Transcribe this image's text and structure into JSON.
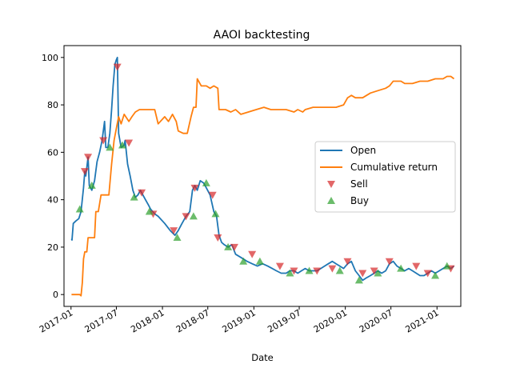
{
  "chart_data": {
    "type": "line",
    "title": "AAOI backtesting",
    "xlabel": "Date",
    "ylabel": "",
    "x_ticks": [
      "2017-01",
      "2017-07",
      "2018-01",
      "2018-07",
      "2019-01",
      "2019-07",
      "2020-01",
      "2020-07",
      "2021-01"
    ],
    "y_ticks": [
      0,
      20,
      40,
      60,
      80,
      100
    ],
    "xlim": [
      "2016-12-04",
      "2021-04-06"
    ],
    "ylim": [
      -5,
      105
    ],
    "legend_position": "center-right",
    "grid": false,
    "colors": {
      "open": "#1f77b4",
      "cumulative": "#ff7f0e",
      "sell": "#d62728",
      "buy": "#2ca02c"
    },
    "series": [
      {
        "name": "Open",
        "kind": "line",
        "points": [
          [
            "2017-01-03",
            23.5
          ],
          [
            "2017-01-05",
            23
          ],
          [
            "2017-01-10",
            30
          ],
          [
            "2017-01-20",
            31
          ],
          [
            "2017-02-01",
            32
          ],
          [
            "2017-02-10",
            35
          ],
          [
            "2017-02-20",
            45
          ],
          [
            "2017-02-25",
            52
          ],
          [
            "2017-03-01",
            50
          ],
          [
            "2017-03-10",
            58
          ],
          [
            "2017-03-15",
            46
          ],
          [
            "2017-03-25",
            44
          ],
          [
            "2017-04-05",
            48
          ],
          [
            "2017-04-15",
            56
          ],
          [
            "2017-04-25",
            60
          ],
          [
            "2017-05-05",
            65
          ],
          [
            "2017-05-15",
            73
          ],
          [
            "2017-05-20",
            62
          ],
          [
            "2017-05-28",
            62
          ],
          [
            "2017-06-05",
            68
          ],
          [
            "2017-06-12",
            78
          ],
          [
            "2017-06-18",
            88
          ],
          [
            "2017-06-25",
            97
          ],
          [
            "2017-07-01",
            99
          ],
          [
            "2017-07-05",
            100
          ],
          [
            "2017-07-10",
            68
          ],
          [
            "2017-07-20",
            62
          ],
          [
            "2017-08-01",
            63
          ],
          [
            "2017-08-05",
            65
          ],
          [
            "2017-08-15",
            55
          ],
          [
            "2017-08-25",
            50
          ],
          [
            "2017-09-05",
            44
          ],
          [
            "2017-09-15",
            41
          ],
          [
            "2017-09-25",
            42
          ],
          [
            "2017-10-05",
            44
          ],
          [
            "2017-10-15",
            42
          ],
          [
            "2017-10-25",
            40
          ],
          [
            "2017-11-05",
            38
          ],
          [
            "2017-11-15",
            36
          ],
          [
            "2017-12-01",
            34
          ],
          [
            "2017-12-15",
            33
          ],
          [
            "2018-01-10",
            30
          ],
          [
            "2018-02-01",
            27
          ],
          [
            "2018-02-20",
            25
          ],
          [
            "2018-03-05",
            27
          ],
          [
            "2018-03-20",
            30
          ],
          [
            "2018-04-05",
            33
          ],
          [
            "2018-04-20",
            35
          ],
          [
            "2018-05-01",
            44
          ],
          [
            "2018-05-10",
            46
          ],
          [
            "2018-05-20",
            44
          ],
          [
            "2018-06-01",
            48
          ],
          [
            "2018-06-15",
            47
          ],
          [
            "2018-06-25",
            45
          ],
          [
            "2018-07-10",
            42
          ],
          [
            "2018-07-25",
            35
          ],
          [
            "2018-08-05",
            33
          ],
          [
            "2018-08-15",
            25
          ],
          [
            "2018-08-25",
            22
          ],
          [
            "2018-09-05",
            21
          ],
          [
            "2018-09-20",
            20
          ],
          [
            "2018-10-05",
            21
          ],
          [
            "2018-10-20",
            17
          ],
          [
            "2018-11-05",
            16
          ],
          [
            "2018-11-20",
            15
          ],
          [
            "2018-12-05",
            14
          ],
          [
            "2018-12-25",
            13
          ],
          [
            "2019-01-15",
            12
          ],
          [
            "2019-02-05",
            13
          ],
          [
            "2019-02-25",
            12
          ],
          [
            "2019-03-15",
            11
          ],
          [
            "2019-04-01",
            10
          ],
          [
            "2019-04-20",
            9
          ],
          [
            "2019-05-10",
            9
          ],
          [
            "2019-05-25",
            10
          ],
          [
            "2019-06-10",
            10
          ],
          [
            "2019-06-25",
            9
          ],
          [
            "2019-07-10",
            10
          ],
          [
            "2019-07-25",
            11
          ],
          [
            "2019-08-10",
            10
          ],
          [
            "2019-08-25",
            10
          ],
          [
            "2019-09-10",
            10
          ],
          [
            "2019-09-25",
            11
          ],
          [
            "2019-10-10",
            12
          ],
          [
            "2019-10-25",
            13
          ],
          [
            "2019-11-10",
            14
          ],
          [
            "2019-11-25",
            13
          ],
          [
            "2019-12-10",
            12
          ],
          [
            "2019-12-25",
            11
          ],
          [
            "2020-01-10",
            13
          ],
          [
            "2020-01-25",
            14
          ],
          [
            "2020-02-10",
            10
          ],
          [
            "2020-02-25",
            8
          ],
          [
            "2020-03-10",
            6
          ],
          [
            "2020-03-25",
            7
          ],
          [
            "2020-04-10",
            8
          ],
          [
            "2020-04-25",
            9
          ],
          [
            "2020-05-10",
            10
          ],
          [
            "2020-05-25",
            9
          ],
          [
            "2020-06-10",
            10
          ],
          [
            "2020-06-25",
            13
          ],
          [
            "2020-07-10",
            14
          ],
          [
            "2020-07-25",
            12
          ],
          [
            "2020-08-10",
            11
          ],
          [
            "2020-08-25",
            10
          ],
          [
            "2020-09-10",
            11
          ],
          [
            "2020-09-25",
            10
          ],
          [
            "2020-10-10",
            9
          ],
          [
            "2020-10-25",
            8
          ],
          [
            "2020-11-10",
            8
          ],
          [
            "2020-11-25",
            9
          ],
          [
            "2020-12-10",
            10
          ],
          [
            "2020-12-25",
            9
          ],
          [
            "2021-01-10",
            10
          ],
          [
            "2021-01-25",
            11
          ],
          [
            "2021-02-10",
            12
          ],
          [
            "2021-02-25",
            11
          ],
          [
            "2021-03-10",
            12
          ]
        ]
      },
      {
        "name": "Cumulative return",
        "kind": "line",
        "points": [
          [
            "2017-01-03",
            0
          ],
          [
            "2017-01-25",
            0
          ],
          [
            "2017-02-05",
            0
          ],
          [
            "2017-02-10",
            -0.5
          ],
          [
            "2017-02-15",
            5
          ],
          [
            "2017-02-20",
            15
          ],
          [
            "2017-02-25",
            18
          ],
          [
            "2017-03-05",
            18
          ],
          [
            "2017-03-10",
            24
          ],
          [
            "2017-03-25",
            24
          ],
          [
            "2017-04-05",
            24
          ],
          [
            "2017-04-10",
            35
          ],
          [
            "2017-04-20",
            35
          ],
          [
            "2017-05-01",
            42
          ],
          [
            "2017-05-20",
            42
          ],
          [
            "2017-06-01",
            42
          ],
          [
            "2017-06-12",
            55
          ],
          [
            "2017-06-22",
            65
          ],
          [
            "2017-07-01",
            70
          ],
          [
            "2017-07-10",
            75
          ],
          [
            "2017-07-20",
            72
          ],
          [
            "2017-08-01",
            76
          ],
          [
            "2017-08-20",
            73
          ],
          [
            "2017-09-01",
            75
          ],
          [
            "2017-09-15",
            77
          ],
          [
            "2017-10-01",
            78
          ],
          [
            "2017-11-01",
            78
          ],
          [
            "2017-12-01",
            78
          ],
          [
            "2017-12-15",
            72
          ],
          [
            "2018-01-10",
            75
          ],
          [
            "2018-01-25",
            73
          ],
          [
            "2018-02-10",
            76
          ],
          [
            "2018-02-25",
            73
          ],
          [
            "2018-03-05",
            69
          ],
          [
            "2018-03-25",
            68
          ],
          [
            "2018-04-10",
            68
          ],
          [
            "2018-04-25",
            75
          ],
          [
            "2018-05-05",
            79
          ],
          [
            "2018-05-15",
            79
          ],
          [
            "2018-05-20",
            91
          ],
          [
            "2018-06-05",
            88
          ],
          [
            "2018-06-25",
            88
          ],
          [
            "2018-07-10",
            87
          ],
          [
            "2018-07-25",
            88
          ],
          [
            "2018-08-10",
            87
          ],
          [
            "2018-08-15",
            78
          ],
          [
            "2018-09-10",
            78
          ],
          [
            "2018-10-01",
            77
          ],
          [
            "2018-10-20",
            78
          ],
          [
            "2018-11-10",
            76
          ],
          [
            "2018-12-10",
            77
          ],
          [
            "2019-01-10",
            78
          ],
          [
            "2019-02-10",
            79
          ],
          [
            "2019-03-10",
            78
          ],
          [
            "2019-04-10",
            78
          ],
          [
            "2019-05-10",
            78
          ],
          [
            "2019-06-10",
            77
          ],
          [
            "2019-06-25",
            78
          ],
          [
            "2019-07-15",
            77
          ],
          [
            "2019-07-25",
            78
          ],
          [
            "2019-08-25",
            79
          ],
          [
            "2019-09-25",
            79
          ],
          [
            "2019-10-25",
            79
          ],
          [
            "2019-11-25",
            79
          ],
          [
            "2019-12-25",
            80
          ],
          [
            "2020-01-10",
            83
          ],
          [
            "2020-01-25",
            84
          ],
          [
            "2020-02-10",
            83
          ],
          [
            "2020-03-10",
            83
          ],
          [
            "2020-04-10",
            85
          ],
          [
            "2020-05-10",
            86
          ],
          [
            "2020-06-10",
            87
          ],
          [
            "2020-06-25",
            88
          ],
          [
            "2020-07-10",
            90
          ],
          [
            "2020-08-10",
            90
          ],
          [
            "2020-08-25",
            89
          ],
          [
            "2020-09-25",
            89
          ],
          [
            "2020-10-25",
            90
          ],
          [
            "2020-11-25",
            90
          ],
          [
            "2020-12-25",
            91
          ],
          [
            "2021-01-10",
            91
          ],
          [
            "2021-01-25",
            91
          ],
          [
            "2021-02-10",
            92
          ],
          [
            "2021-02-25",
            92
          ],
          [
            "2021-03-10",
            91
          ]
        ]
      },
      {
        "name": "Sell",
        "kind": "marker",
        "marker": "triangle-down",
        "points": [
          [
            "2017-02-25",
            52
          ],
          [
            "2017-03-10",
            58
          ],
          [
            "2017-05-10",
            65
          ],
          [
            "2017-07-05",
            96
          ],
          [
            "2017-08-20",
            64
          ],
          [
            "2017-10-10",
            43
          ],
          [
            "2017-11-25",
            34
          ],
          [
            "2018-02-15",
            27
          ],
          [
            "2018-04-05",
            33
          ],
          [
            "2018-05-10",
            45
          ],
          [
            "2018-07-20",
            42
          ],
          [
            "2018-08-10",
            24
          ],
          [
            "2018-10-15",
            20
          ],
          [
            "2018-12-25",
            17
          ],
          [
            "2019-04-15",
            12
          ],
          [
            "2019-06-10",
            10
          ],
          [
            "2019-09-10",
            10
          ],
          [
            "2019-11-10",
            11
          ],
          [
            "2020-01-10",
            14
          ],
          [
            "2020-03-10",
            9
          ],
          [
            "2020-04-25",
            10
          ],
          [
            "2020-06-25",
            14
          ],
          [
            "2020-10-10",
            12
          ],
          [
            "2020-11-25",
            9
          ],
          [
            "2021-02-25",
            11
          ]
        ]
      },
      {
        "name": "Buy",
        "kind": "marker",
        "marker": "triangle-up",
        "points": [
          [
            "2017-02-05",
            36
          ],
          [
            "2017-03-25",
            46
          ],
          [
            "2017-06-05",
            62
          ],
          [
            "2017-07-25",
            63
          ],
          [
            "2017-09-10",
            41
          ],
          [
            "2017-11-10",
            35
          ],
          [
            "2018-03-01",
            24
          ],
          [
            "2018-05-05",
            33
          ],
          [
            "2018-06-25",
            47
          ],
          [
            "2018-08-01",
            34
          ],
          [
            "2018-09-20",
            20
          ],
          [
            "2018-11-20",
            14
          ],
          [
            "2019-01-25",
            14
          ],
          [
            "2019-05-25",
            9
          ],
          [
            "2019-08-10",
            10
          ],
          [
            "2019-12-10",
            10
          ],
          [
            "2020-02-25",
            6
          ],
          [
            "2020-05-10",
            9
          ],
          [
            "2020-08-10",
            11
          ],
          [
            "2020-12-25",
            8
          ],
          [
            "2021-02-10",
            12
          ]
        ]
      }
    ]
  }
}
